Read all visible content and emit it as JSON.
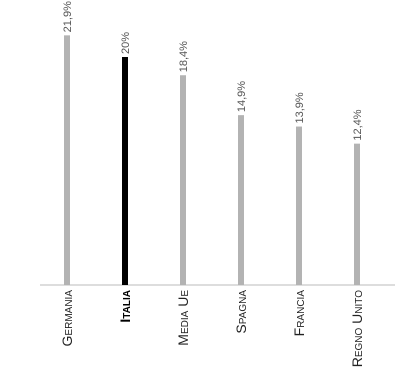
{
  "chart_data": {
    "type": "bar",
    "categories": [
      "Germania",
      "Italia",
      "Media UE",
      "Spagna",
      "Francia",
      "Regno Unito"
    ],
    "values": [
      21.9,
      20,
      18.4,
      14.9,
      13.9,
      12.4
    ],
    "value_labels": [
      "21,9%",
      "20%",
      "18,4%",
      "14,9%",
      "13,9%",
      "12,4%"
    ],
    "highlight": "Italia",
    "ylim": [
      0,
      25
    ],
    "grid": false,
    "legend": "none",
    "colors": {
      "bar": "#b3b3b3",
      "highlight_bar": "#000000",
      "baseline": "#bbbbbb"
    }
  }
}
